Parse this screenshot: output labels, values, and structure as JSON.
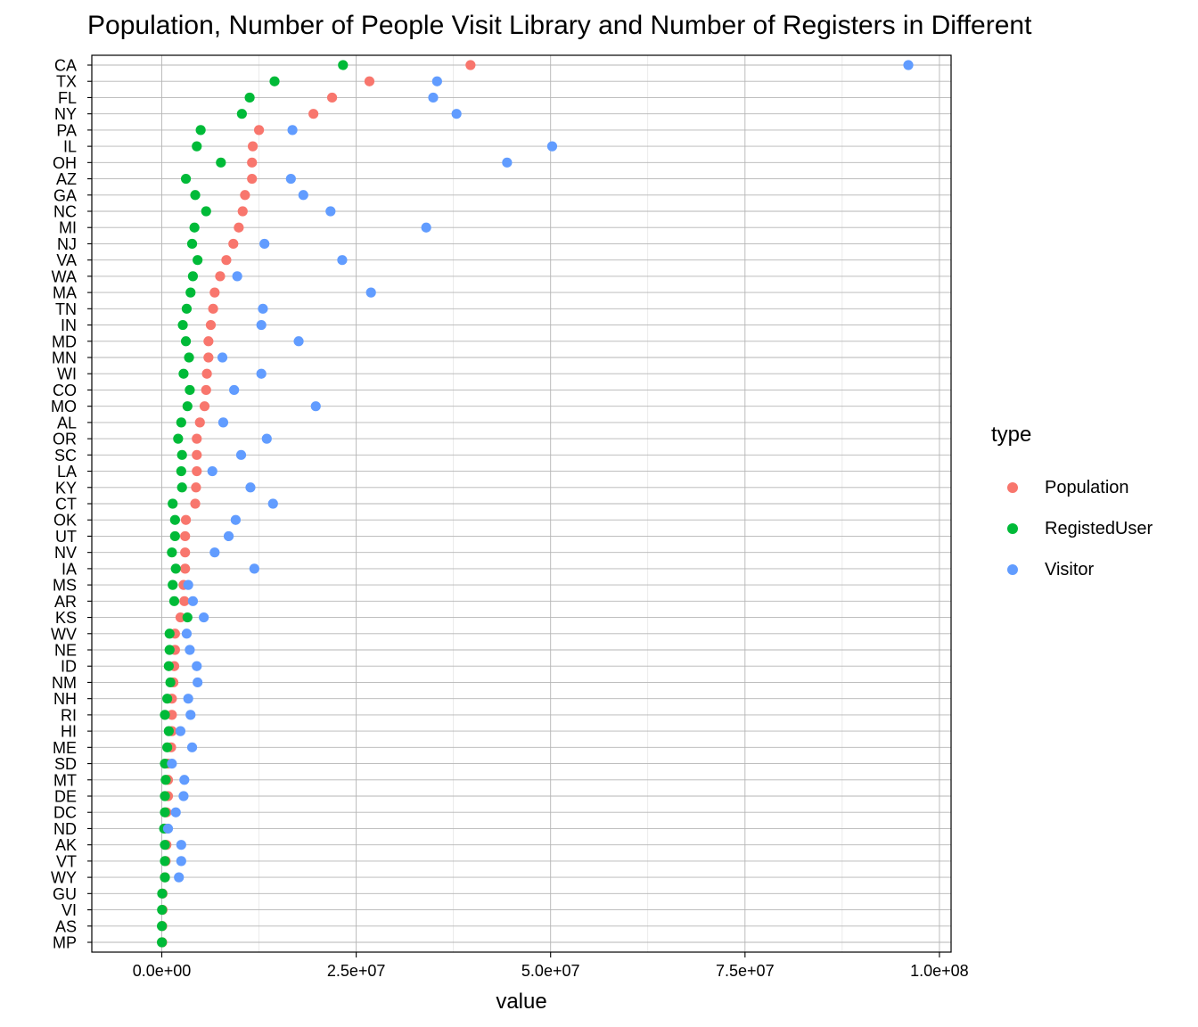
{
  "chart_data": {
    "type": "scatter",
    "title": "Population, Number of People Visit Library and Number of Registers in Different",
    "xlabel": "value",
    "ylabel": "",
    "xlim": [
      -9000000,
      101500000
    ],
    "x_ticks": [
      0,
      25000000,
      50000000,
      75000000,
      100000000
    ],
    "x_tick_labels": [
      "0.0e+00",
      "2.5e+07",
      "5.0e+07",
      "7.5e+07",
      "1.0e+08"
    ],
    "grid": true,
    "legend_position": "right",
    "legend_title": "type",
    "categories": [
      "CA",
      "TX",
      "FL",
      "NY",
      "PA",
      "IL",
      "OH",
      "AZ",
      "GA",
      "NC",
      "MI",
      "NJ",
      "VA",
      "WA",
      "MA",
      "TN",
      "IN",
      "MD",
      "MN",
      "WI",
      "CO",
      "MO",
      "AL",
      "OR",
      "SC",
      "LA",
      "KY",
      "CT",
      "OK",
      "UT",
      "NV",
      "IA",
      "MS",
      "AR",
      "KS",
      "WV",
      "NE",
      "ID",
      "NM",
      "NH",
      "RI",
      "HI",
      "ME",
      "SD",
      "MT",
      "DE",
      "DC",
      "ND",
      "AK",
      "VT",
      "WY",
      "GU",
      "VI",
      "AS",
      "MP"
    ],
    "series": [
      {
        "name": "Population",
        "color": "#F8766D",
        "values": [
          39700000,
          26700000,
          21900000,
          19500000,
          12500000,
          11700000,
          11600000,
          11600000,
          10700000,
          10400000,
          9900000,
          9200000,
          8300000,
          7500000,
          6800000,
          6600000,
          6300000,
          6000000,
          6000000,
          5800000,
          5700000,
          5500000,
          4900000,
          4500000,
          4500000,
          4500000,
          4400000,
          4300000,
          3100000,
          3000000,
          3000000,
          3000000,
          2800000,
          2900000,
          2400000,
          1700000,
          1700000,
          1600000,
          1500000,
          1300000,
          1300000,
          1300000,
          1200000,
          800000,
          800000,
          800000,
          600000,
          500000,
          600000,
          500000,
          400000,
          100000,
          100000,
          60000,
          50000
        ]
      },
      {
        "name": "RegistedUser",
        "color": "#00BA38",
        "values": [
          23300000,
          14500000,
          11300000,
          10300000,
          5000000,
          4500000,
          7600000,
          3100000,
          4300000,
          5700000,
          4200000,
          3900000,
          4600000,
          4000000,
          3700000,
          3200000,
          2700000,
          3100000,
          3500000,
          2800000,
          3600000,
          3300000,
          2500000,
          2100000,
          2600000,
          2500000,
          2600000,
          1400000,
          1700000,
          1700000,
          1300000,
          1800000,
          1400000,
          1600000,
          3300000,
          1000000,
          1000000,
          900000,
          1100000,
          700000,
          400000,
          900000,
          700000,
          400000,
          500000,
          400000,
          400000,
          300000,
          400000,
          400000,
          400000,
          50000,
          30000,
          10000,
          10000
        ]
      },
      {
        "name": "Visitor",
        "color": "#619CFF",
        "values": [
          96000000,
          35400000,
          34900000,
          37900000,
          16800000,
          50200000,
          44400000,
          16600000,
          18200000,
          21700000,
          34000000,
          13200000,
          23200000,
          9700000,
          26900000,
          13000000,
          12800000,
          17600000,
          7800000,
          12800000,
          9300000,
          19800000,
          7900000,
          13500000,
          10200000,
          6500000,
          11400000,
          14300000,
          9500000,
          8600000,
          6800000,
          11900000,
          3400000,
          4000000,
          5400000,
          3200000,
          3600000,
          4500000,
          4600000,
          3400000,
          3700000,
          2400000,
          3900000,
          1300000,
          2900000,
          2800000,
          1800000,
          800000,
          2500000,
          2500000,
          2200000,
          null,
          null,
          null,
          null
        ]
      }
    ]
  }
}
